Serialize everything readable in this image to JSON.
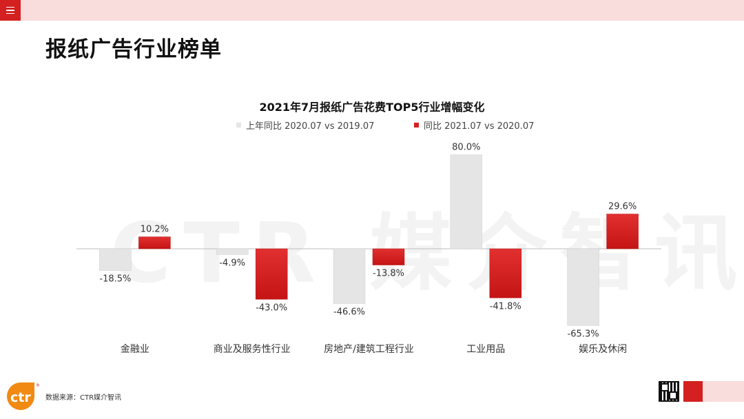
{
  "header": {
    "menu_icon": "hamburger-menu-icon",
    "page_title": "报纸广告行业榜单"
  },
  "watermark": "CTR 媒介智讯",
  "chart_data": {
    "type": "bar",
    "title": "2021年7月报纸广告花费TOP5行业增幅变化",
    "categories": [
      "金融业",
      "商业及服务性行业",
      "房地产/建筑工程行业",
      "工业用品",
      "娱乐及休闲"
    ],
    "series": [
      {
        "name": "上年同比 2020.07 vs 2019.07",
        "color": "#e5e5e5",
        "values": [
          -18.5,
          -4.9,
          -46.6,
          80.0,
          -65.3
        ],
        "labels": [
          "-18.5%",
          "-4.9%",
          "-46.6%",
          "80.0%",
          "-65.3%"
        ]
      },
      {
        "name": "同比 2021.07 vs 2020.07",
        "color": "#d42020",
        "values": [
          10.2,
          -43.0,
          -13.8,
          -41.8,
          29.6
        ],
        "labels": [
          "10.2%",
          "-43.0%",
          "-13.8%",
          "-41.8%",
          "29.6%"
        ]
      }
    ],
    "unit": "%",
    "ylim": [
      -70,
      85
    ],
    "grid": false,
    "legend_position": "top"
  },
  "footer": {
    "logo_text": "ctr",
    "logo_mark": "®",
    "source": "数据来源：CTR媒介智讯",
    "qr_icon": "qr-code-icon"
  },
  "colors": {
    "brand_red": "#d42020",
    "pink": "#f9dcdc",
    "grey_bar": "#e5e5e5"
  }
}
